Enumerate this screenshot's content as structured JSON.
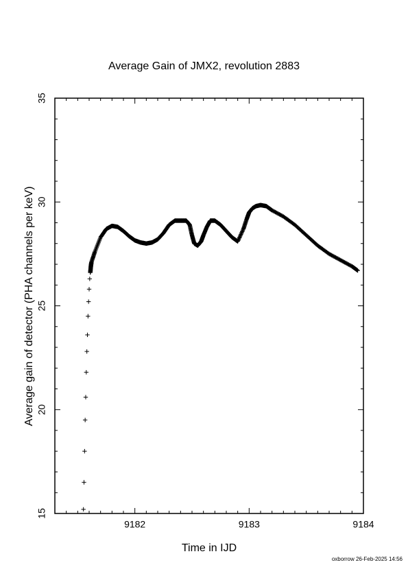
{
  "chart_data": {
    "type": "scatter",
    "title": "Average Gain of JMX2, revolution 2883",
    "xlabel": "Time in IJD",
    "ylabel": "Average gain of detector (PHA channels per keV)",
    "xlim": [
      9181.3,
      9184.0
    ],
    "ylim": [
      15,
      35
    ],
    "xticks": [
      9182,
      9183,
      9184
    ],
    "yticks": [
      15,
      20,
      25,
      30,
      35
    ],
    "marker": "+",
    "series": [
      {
        "x": [
          9181.55,
          9181.555,
          9181.56,
          9181.565,
          9181.57,
          9181.575,
          9181.58,
          9181.585,
          9181.59,
          9181.595,
          9181.6,
          9181.605,
          9181.61,
          9181.615,
          9181.62,
          9181.65,
          9181.7,
          9181.75,
          9181.8,
          9181.85,
          9181.9,
          9181.95,
          9182.0,
          9182.05,
          9182.1,
          9182.15,
          9182.2,
          9182.25,
          9182.3,
          9182.35,
          9182.4,
          9182.45,
          9182.48,
          9182.5,
          9182.52,
          9182.55,
          9182.58,
          9182.6,
          9182.63,
          9182.66,
          9182.7,
          9182.75,
          9182.8,
          9182.85,
          9182.9,
          9182.95,
          9182.98,
          9183.0,
          9183.03,
          9183.06,
          9183.1,
          9183.15,
          9183.2,
          9183.3,
          9183.4,
          9183.5,
          9183.6,
          9183.7,
          9183.8,
          9183.9,
          9183.95
        ],
        "y": [
          15.2,
          16.5,
          18.0,
          19.5,
          20.6,
          21.8,
          22.8,
          23.6,
          24.5,
          25.2,
          25.8,
          26.3,
          26.6,
          26.9,
          27.1,
          27.6,
          28.3,
          28.7,
          28.85,
          28.8,
          28.6,
          28.35,
          28.15,
          28.05,
          28.0,
          28.05,
          28.2,
          28.5,
          28.9,
          29.1,
          29.1,
          29.1,
          28.9,
          28.4,
          28.0,
          27.9,
          28.1,
          28.4,
          28.8,
          29.1,
          29.1,
          28.9,
          28.6,
          28.3,
          28.1,
          28.7,
          29.2,
          29.5,
          29.7,
          29.8,
          29.85,
          29.8,
          29.6,
          29.3,
          28.9,
          28.4,
          27.9,
          27.5,
          27.2,
          26.9,
          26.7
        ]
      }
    ]
  },
  "footer_text": "oxborrow 26-Feb-2025 14:56"
}
